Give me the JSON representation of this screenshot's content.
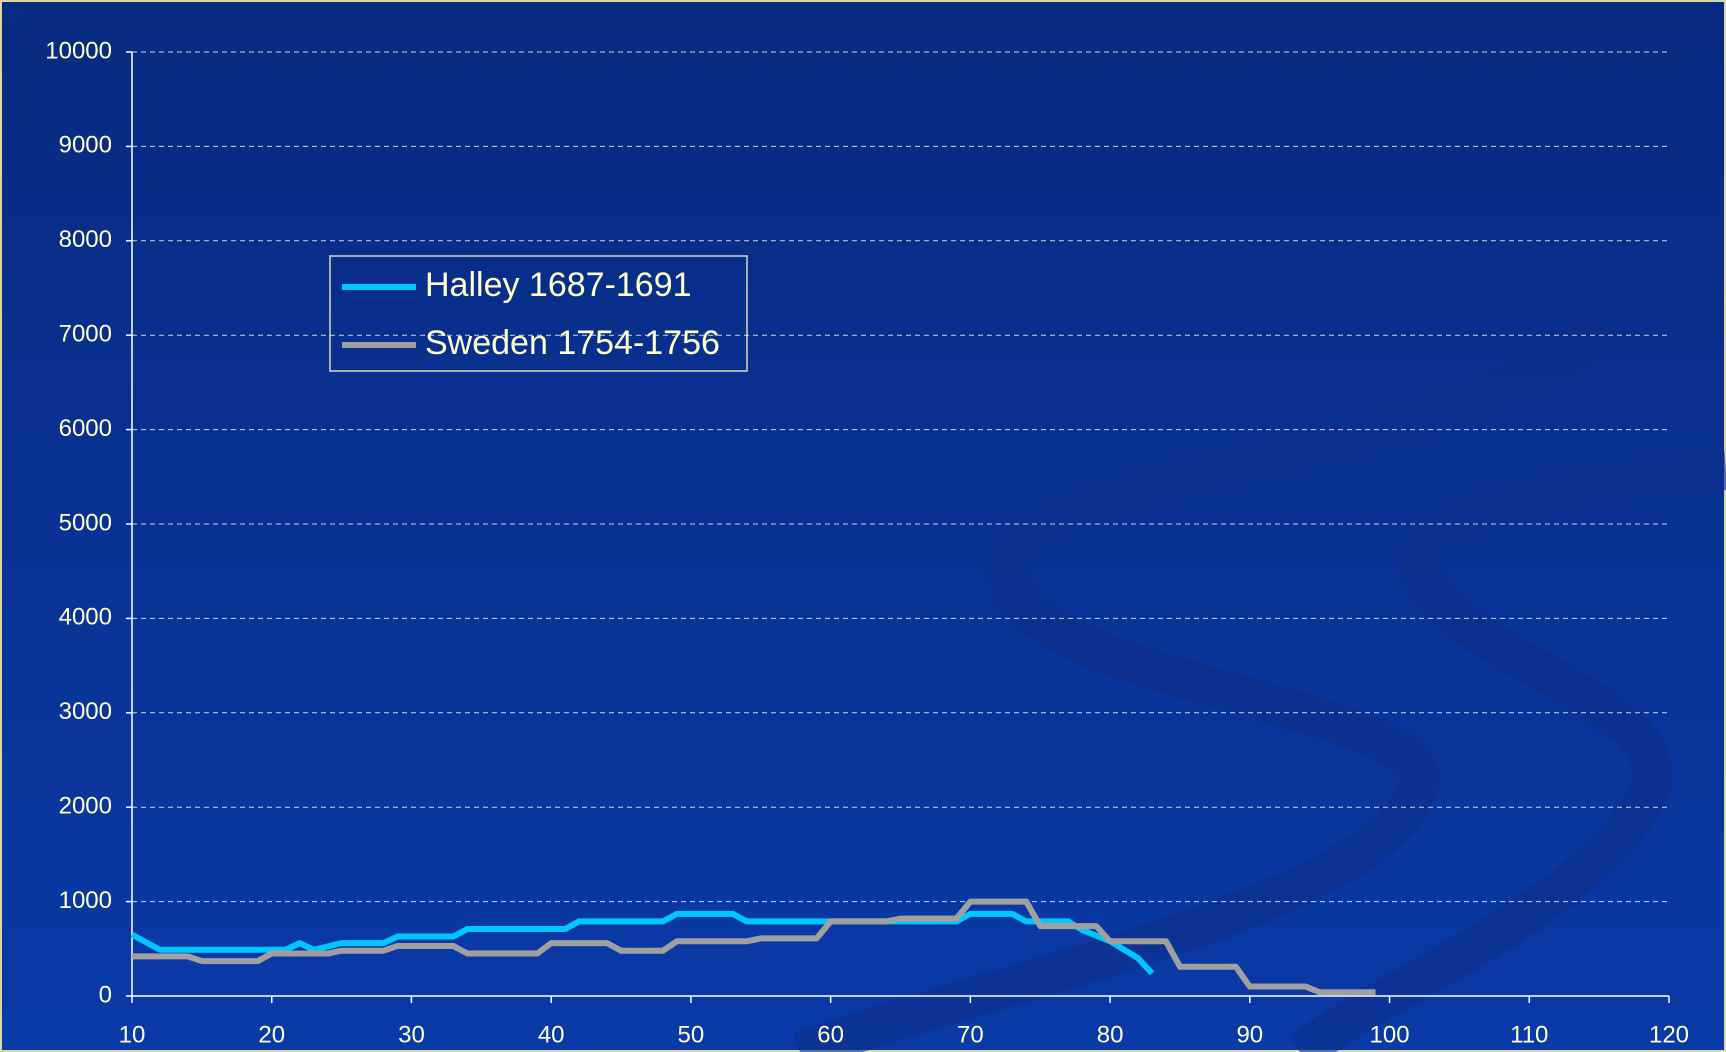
{
  "chart_data": {
    "type": "line",
    "series": [
      {
        "name": "Halley 1687-1691",
        "color": "#00c8ff",
        "x": [
          10,
          12,
          21,
          22,
          23,
          25,
          28,
          29,
          33,
          34,
          41,
          42,
          48,
          49,
          53,
          54,
          69,
          70,
          73,
          74,
          77,
          78,
          80,
          82,
          83
        ],
        "values": [
          650,
          490,
          490,
          560,
          490,
          560,
          560,
          630,
          630,
          710,
          710,
          790,
          790,
          870,
          870,
          790,
          790,
          870,
          870,
          790,
          790,
          700,
          580,
          400,
          240
        ]
      },
      {
        "name": "Sweden 1754-1756",
        "color": "#a0a0a0",
        "x": [
          10,
          14,
          15,
          19,
          20,
          24,
          25,
          28,
          29,
          33,
          34,
          39,
          40,
          44,
          45,
          48,
          49,
          54,
          55,
          59,
          60,
          64,
          65,
          69,
          70,
          74,
          75,
          79,
          80,
          84,
          85,
          89,
          90,
          94,
          95,
          99
        ],
        "values": [
          420,
          420,
          370,
          370,
          450,
          450,
          480,
          480,
          530,
          530,
          450,
          450,
          560,
          560,
          480,
          480,
          580,
          580,
          610,
          610,
          790,
          790,
          820,
          820,
          1000,
          1000,
          740,
          740,
          580,
          580,
          310,
          310,
          100,
          100,
          40,
          40
        ]
      }
    ],
    "xlim": [
      10,
      120
    ],
    "xticks": [
      10,
      20,
      30,
      40,
      50,
      60,
      70,
      80,
      90,
      100,
      110,
      120
    ],
    "ylim": [
      0,
      10000
    ],
    "yticks": [
      0,
      1000,
      2000,
      3000,
      4000,
      5000,
      6000,
      7000,
      8000,
      9000,
      10000
    ],
    "grid": true,
    "legend": "upper-left"
  }
}
